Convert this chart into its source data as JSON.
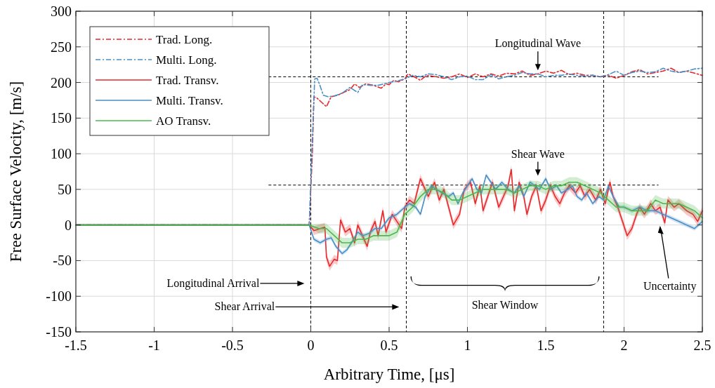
{
  "chart_data": {
    "type": "line",
    "xlabel": "Arbitrary Time, [μs]",
    "ylabel": "Free Surface Velocity, [m/s]",
    "xlim": [
      -1.5,
      2.5
    ],
    "xticks": [
      -1.5,
      -1,
      -0.5,
      0,
      0.5,
      1,
      1.5,
      2,
      2.5
    ],
    "ylim": [
      -150,
      300
    ],
    "yticks": [
      -150,
      -100,
      -50,
      0,
      50,
      100,
      150,
      200,
      250,
      300
    ],
    "grid": true,
    "legend": "top left",
    "marker": "none",
    "series": [
      {
        "name": "Trad. Long.",
        "color": "#e8282b",
        "line_style": "dashed",
        "x": [
          -1.5,
          -0.01,
          0.01,
          0.02,
          0.04,
          0.07,
          0.1,
          0.13,
          0.17,
          0.2,
          0.25,
          0.28,
          0.31,
          0.35,
          0.4,
          0.45,
          0.48,
          0.5,
          0.53,
          0.56,
          0.6,
          0.62,
          0.66,
          0.7,
          0.74,
          0.8,
          0.85,
          0.9,
          0.95,
          1.0,
          1.05,
          1.1,
          1.15,
          1.2,
          1.25,
          1.3,
          1.35,
          1.4,
          1.45,
          1.5,
          1.55,
          1.6,
          1.65,
          1.7,
          1.75,
          1.8,
          1.85,
          1.9,
          1.95,
          2.0,
          2.05,
          2.1,
          2.15,
          2.2,
          2.25,
          2.3,
          2.35,
          2.4,
          2.45,
          2.5
        ],
        "values": [
          0,
          0,
          100,
          180,
          178,
          172,
          166,
          180,
          182,
          185,
          190,
          198,
          193,
          198,
          196,
          192,
          198,
          197,
          203,
          201,
          205,
          212,
          208,
          203,
          210,
          208,
          206,
          208,
          212,
          207,
          212,
          208,
          212,
          209,
          213,
          212,
          216,
          210,
          212,
          216,
          213,
          217,
          211,
          213,
          210,
          210,
          208,
          210,
          206,
          210,
          215,
          218,
          212,
          214,
          216,
          220,
          214,
          216,
          213,
          210
        ]
      },
      {
        "name": "Multi. Long.",
        "color": "#4a8fc6",
        "line_style": "dashed",
        "x": [
          -1.5,
          -0.01,
          0.01,
          0.025,
          0.04,
          0.06,
          0.08,
          0.11,
          0.15,
          0.2,
          0.25,
          0.3,
          0.33,
          0.38,
          0.43,
          0.5,
          0.55,
          0.6,
          0.65,
          0.7,
          0.75,
          0.8,
          0.85,
          0.9,
          0.95,
          1.0,
          1.05,
          1.1,
          1.15,
          1.2,
          1.25,
          1.3,
          1.35,
          1.4,
          1.45,
          1.5,
          1.55,
          1.6,
          1.65,
          1.7,
          1.75,
          1.8,
          1.85,
          1.9,
          1.95,
          2.0,
          2.05,
          2.1,
          2.15,
          2.2,
          2.25,
          2.3,
          2.35,
          2.4,
          2.45,
          2.5
        ],
        "values": [
          0,
          0,
          120,
          205,
          206,
          195,
          182,
          180,
          181,
          185,
          193,
          186,
          197,
          196,
          196,
          200,
          202,
          205,
          210,
          208,
          212,
          211,
          208,
          204,
          208,
          209,
          204,
          204,
          211,
          205,
          208,
          210,
          214,
          212,
          212,
          208,
          210,
          210,
          212,
          210,
          209,
          210,
          208,
          211,
          216,
          210,
          214,
          216,
          214,
          215,
          220,
          216,
          214,
          216,
          219,
          220
        ]
      },
      {
        "name": "Trad. Transv.",
        "color": "#e8282b",
        "line_style": "solid",
        "x": [
          -1.5,
          -0.01,
          0.02,
          0.06,
          0.09,
          0.1,
          0.12,
          0.15,
          0.17,
          0.19,
          0.22,
          0.25,
          0.28,
          0.3,
          0.33,
          0.36,
          0.38,
          0.41,
          0.43,
          0.46,
          0.48,
          0.52,
          0.55,
          0.58,
          0.6,
          0.63,
          0.66,
          0.7,
          0.72,
          0.75,
          0.79,
          0.82,
          0.85,
          0.88,
          0.91,
          0.95,
          0.98,
          1.02,
          1.05,
          1.08,
          1.1,
          1.13,
          1.16,
          1.2,
          1.23,
          1.26,
          1.28,
          1.3,
          1.33,
          1.36,
          1.38,
          1.41,
          1.44,
          1.47,
          1.5,
          1.53,
          1.56,
          1.59,
          1.62,
          1.65,
          1.69,
          1.72,
          1.75,
          1.78,
          1.82,
          1.85,
          1.88,
          1.91,
          1.93,
          1.96,
          1.99,
          2.02,
          2.05,
          2.08,
          2.1,
          2.13,
          2.17,
          2.2,
          2.23,
          2.26,
          2.28,
          2.32,
          2.35,
          2.4,
          2.44,
          2.47,
          2.5
        ],
        "values": [
          0,
          0,
          -8,
          -5,
          -3,
          -45,
          -58,
          -48,
          -50,
          7,
          -10,
          -5,
          -25,
          0,
          -15,
          -30,
          -10,
          5,
          -15,
          20,
          -10,
          15,
          5,
          -5,
          25,
          35,
          30,
          65,
          55,
          40,
          60,
          35,
          50,
          25,
          0,
          15,
          50,
          60,
          30,
          55,
          20,
          40,
          60,
          25,
          40,
          55,
          78,
          20,
          60,
          40,
          15,
          40,
          55,
          20,
          35,
          55,
          40,
          30,
          45,
          55,
          45,
          55,
          40,
          50,
          35,
          50,
          30,
          60,
          40,
          25,
          5,
          -15,
          -5,
          15,
          25,
          15,
          30,
          20,
          25,
          3,
          35,
          25,
          30,
          20,
          15,
          5,
          20
        ],
        "lower": [
          -1,
          -1,
          -14,
          -11,
          -9,
          -51,
          -64,
          -54,
          -56,
          1,
          -16,
          -11,
          -31,
          -6,
          -21,
          -36,
          -16,
          -1,
          -21,
          14,
          -16,
          9,
          -1,
          -11,
          19,
          29,
          24,
          59,
          49,
          34,
          54,
          29,
          44,
          19,
          -6,
          9,
          44,
          54,
          24,
          49,
          14,
          34,
          54,
          19,
          34,
          49,
          72,
          14,
          54,
          34,
          9,
          34,
          49,
          14,
          29,
          49,
          34,
          24,
          39,
          49,
          39,
          49,
          34,
          44,
          29,
          44,
          24,
          54,
          34,
          19,
          -1,
          -21,
          -11,
          9,
          19,
          9,
          24,
          14,
          19,
          -3,
          29,
          19,
          24,
          14,
          9,
          -1,
          14
        ],
        "upper": [
          1,
          1,
          -2,
          1,
          3,
          -39,
          -52,
          -42,
          -44,
          13,
          -4,
          1,
          -19,
          6,
          -9,
          -24,
          -4,
          11,
          -9,
          26,
          -4,
          21,
          11,
          1,
          31,
          41,
          36,
          71,
          61,
          46,
          66,
          41,
          56,
          31,
          6,
          21,
          56,
          66,
          36,
          61,
          26,
          46,
          66,
          31,
          46,
          61,
          84,
          26,
          66,
          46,
          21,
          46,
          61,
          26,
          41,
          61,
          46,
          36,
          51,
          61,
          51,
          61,
          46,
          56,
          41,
          56,
          36,
          66,
          46,
          31,
          11,
          -9,
          1,
          21,
          31,
          21,
          36,
          26,
          31,
          9,
          41,
          31,
          36,
          26,
          21,
          11,
          26
        ]
      },
      {
        "name": "Multi. Transv.",
        "color": "#4a8fc6",
        "line_style": "solid",
        "x": [
          -1.5,
          -0.01,
          0.02,
          0.06,
          0.1,
          0.13,
          0.16,
          0.2,
          0.23,
          0.26,
          0.3,
          0.33,
          0.37,
          0.41,
          0.45,
          0.5,
          0.55,
          0.6,
          0.63,
          0.67,
          0.7,
          0.73,
          0.77,
          0.8,
          0.84,
          0.88,
          0.91,
          0.94,
          0.97,
          1.0,
          1.03,
          1.06,
          1.09,
          1.12,
          1.15,
          1.18,
          1.22,
          1.26,
          1.3,
          1.33,
          1.36,
          1.4,
          1.43,
          1.46,
          1.5,
          1.53,
          1.57,
          1.6,
          1.64,
          1.67,
          1.7,
          1.73,
          1.76,
          1.8,
          1.84,
          1.87,
          1.9,
          1.93,
          1.97,
          2.0,
          2.05,
          2.1,
          2.15,
          2.2,
          2.25,
          2.3,
          2.35,
          2.4,
          2.45,
          2.5
        ],
        "values": [
          0,
          0,
          -20,
          -25,
          -20,
          -18,
          -30,
          -40,
          -35,
          -25,
          -10,
          -15,
          -12,
          -5,
          -5,
          10,
          15,
          25,
          30,
          25,
          15,
          40,
          55,
          50,
          45,
          40,
          45,
          30,
          45,
          55,
          65,
          50,
          45,
          70,
          60,
          50,
          60,
          50,
          45,
          55,
          40,
          60,
          55,
          50,
          65,
          50,
          55,
          45,
          50,
          55,
          40,
          35,
          45,
          30,
          40,
          35,
          55,
          40,
          25,
          25,
          20,
          25,
          20,
          20,
          15,
          10,
          5,
          0,
          -5,
          5
        ],
        "lower": [
          -1,
          -1,
          -23,
          -28,
          -23,
          -21,
          -33,
          -43,
          -38,
          -28,
          -13,
          -18,
          -15,
          -8,
          -8,
          7,
          12,
          22,
          27,
          22,
          12,
          37,
          52,
          47,
          42,
          37,
          42,
          27,
          42,
          52,
          62,
          47,
          42,
          67,
          57,
          47,
          57,
          47,
          42,
          52,
          37,
          57,
          52,
          47,
          62,
          47,
          52,
          42,
          47,
          52,
          37,
          32,
          42,
          27,
          37,
          32,
          52,
          37,
          22,
          22,
          17,
          22,
          17,
          17,
          12,
          7,
          2,
          -3,
          -8,
          2
        ],
        "upper": [
          1,
          1,
          -17,
          -22,
          -17,
          -15,
          -27,
          -37,
          -32,
          -22,
          -7,
          -12,
          -9,
          -2,
          -2,
          13,
          18,
          28,
          33,
          28,
          18,
          43,
          58,
          53,
          48,
          43,
          48,
          33,
          48,
          58,
          68,
          53,
          48,
          73,
          63,
          53,
          63,
          53,
          48,
          58,
          43,
          63,
          58,
          53,
          68,
          53,
          58,
          48,
          53,
          58,
          43,
          38,
          48,
          33,
          43,
          38,
          58,
          43,
          28,
          28,
          23,
          28,
          23,
          23,
          18,
          13,
          8,
          3,
          -2,
          8
        ]
      },
      {
        "name": "AO Transv.",
        "color": "#4cb84c",
        "line_style": "solid",
        "x": [
          -1.5,
          -0.01,
          0.05,
          0.1,
          0.15,
          0.2,
          0.25,
          0.3,
          0.35,
          0.4,
          0.45,
          0.5,
          0.55,
          0.6,
          0.65,
          0.7,
          0.75,
          0.8,
          0.85,
          0.9,
          0.95,
          1.0,
          1.05,
          1.1,
          1.15,
          1.2,
          1.25,
          1.3,
          1.35,
          1.4,
          1.45,
          1.5,
          1.55,
          1.6,
          1.65,
          1.7,
          1.75,
          1.8,
          1.85,
          1.9,
          1.95,
          2.0,
          2.05,
          2.1,
          2.15,
          2.2,
          2.25,
          2.3,
          2.35,
          2.4,
          2.45,
          2.5
        ],
        "values": [
          0,
          0,
          -5,
          -5,
          -15,
          -25,
          -25,
          -20,
          -20,
          -15,
          -15,
          -15,
          -10,
          15,
          25,
          40,
          50,
          50,
          45,
          35,
          35,
          40,
          45,
          50,
          50,
          50,
          50,
          45,
          50,
          55,
          55,
          50,
          55,
          55,
          60,
          60,
          55,
          50,
          45,
          35,
          25,
          25,
          20,
          20,
          20,
          35,
          30,
          30,
          30,
          25,
          20,
          10
        ],
        "lower": [
          -1,
          -1,
          -12,
          -12,
          -22,
          -32,
          -32,
          -27,
          -27,
          -22,
          -22,
          -22,
          -17,
          8,
          18,
          33,
          43,
          43,
          38,
          28,
          28,
          33,
          38,
          43,
          43,
          43,
          43,
          38,
          43,
          48,
          48,
          43,
          48,
          48,
          53,
          53,
          48,
          43,
          38,
          28,
          18,
          18,
          13,
          13,
          13,
          28,
          23,
          23,
          23,
          18,
          13,
          3
        ],
        "upper": [
          1,
          1,
          2,
          2,
          -8,
          -18,
          -18,
          -13,
          -13,
          -8,
          -8,
          -8,
          -3,
          22,
          32,
          47,
          57,
          57,
          52,
          42,
          42,
          47,
          52,
          57,
          57,
          57,
          57,
          52,
          57,
          62,
          62,
          57,
          62,
          62,
          67,
          67,
          62,
          57,
          52,
          42,
          32,
          32,
          27,
          27,
          27,
          42,
          37,
          37,
          37,
          32,
          27,
          17
        ]
      }
    ],
    "ref_lines": [
      {
        "axis": "x",
        "value": 0,
        "line_style": "dashed",
        "color": "#000000"
      },
      {
        "axis": "x",
        "value": 0.61,
        "line_style": "dashed",
        "color": "#000000"
      },
      {
        "axis": "x",
        "value": 1.87,
        "line_style": "dashed",
        "color": "#000000"
      },
      {
        "axis": "y",
        "value": 208,
        "line_style": "dashed",
        "color": "#000000"
      },
      {
        "axis": "y",
        "value": 56,
        "line_style": "dashed",
        "color": "#000000"
      }
    ],
    "annotations": [
      "Longitudinal Wave",
      "Shear Wave",
      "Longitudinal Arrival",
      "Shear Arrival",
      "Shear Window",
      "Uncertainty"
    ]
  }
}
